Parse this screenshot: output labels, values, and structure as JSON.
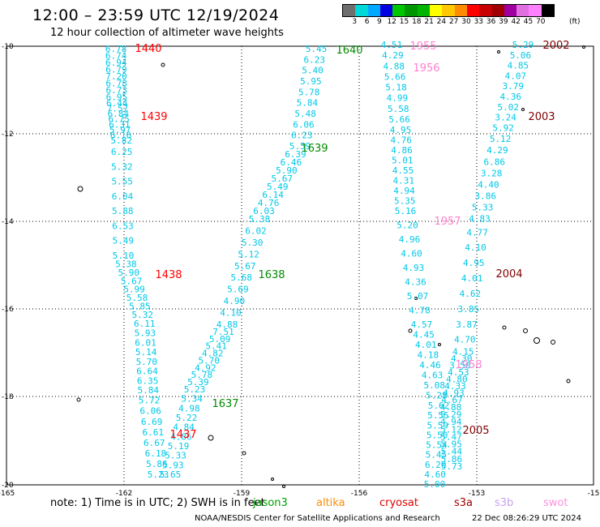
{
  "header": {
    "title": "12:00 – 23:59 UTC 12/19/2024",
    "subtitle": "12 hour collection of altimeter wave heights"
  },
  "colorbar": {
    "colors": [
      "#6e6e6e",
      "#00d8d8",
      "#00a8ff",
      "#0000e0",
      "#00c800",
      "#009600",
      "#00b400",
      "#ffff00",
      "#ffc800",
      "#ff8c00",
      "#ff0000",
      "#c80000",
      "#a00000",
      "#a000a0",
      "#e070e0",
      "#ff80ff",
      "#000000"
    ],
    "ticks": [
      "3",
      "6",
      "9",
      "12",
      "15",
      "18",
      "21",
      "24",
      "27",
      "30",
      "33",
      "36",
      "39",
      "42",
      "45",
      "70"
    ],
    "unit": "(ft)"
  },
  "axes": {
    "y_ticks": [
      "-10",
      "-12",
      "-14",
      "-16",
      "-18",
      "-20"
    ],
    "x_ticks": [
      "-165",
      "-162",
      "-159",
      "-156",
      "-153",
      "-15"
    ]
  },
  "tracks": [
    {
      "color": "#00c8e8",
      "values": [
        "6.78",
        "6.74",
        "6.94",
        "6.79",
        "7.20",
        "6.78",
        "6.73",
        "6.95",
        "6.44",
        "7.57",
        "6.84",
        "6.75",
        "6.31",
        "5.97",
        "6.16",
        "5.82",
        "6.25",
        "5.32",
        "5.55",
        "6.04",
        "5.88",
        "6.53",
        "5.49",
        "5.10",
        "5.38",
        "5.90",
        "5.67",
        "5.99",
        "5.58",
        "5.85",
        "5.32",
        "6.11",
        "5.93",
        "6.01",
        "5.14",
        "5.70",
        "6.64",
        "6.35",
        "5.84",
        "5.72",
        "6.06",
        "6.69",
        "6.61",
        "6.67",
        "6.18",
        "5.86",
        "5.23"
      ]
    },
    {
      "color": "#00c8e8",
      "values": [
        "5.45",
        "6.23",
        "5.40",
        "5.95",
        "5.78",
        "5.84",
        "5.48",
        "6.06",
        "6.23",
        "5.59",
        "6.39",
        "6.46",
        "5.90",
        "5.67",
        "5.49",
        "6.14",
        "4.76",
        "6.03",
        "5.38",
        "6.02",
        "5.30",
        "5.12",
        "5.67",
        "5.68",
        "5.69",
        "4.90",
        "4.10",
        "4.88",
        "7.51",
        "5.09",
        "5.41",
        "4.82",
        "5.70",
        "4.92",
        "5.78",
        "5.39",
        "5.23",
        "5.34",
        "4.98",
        "5.22",
        "4.84",
        "4.86",
        "5.19",
        "5.33",
        "5.93",
        "5.65"
      ]
    },
    {
      "color": "#00c8e8",
      "values": [
        "4.51",
        "4.29",
        "4.88",
        "5.66",
        "5.18",
        "4.99",
        "5.58",
        "5.66",
        "4.95",
        "4.76",
        "4.86",
        "5.01",
        "4.55",
        "4.31",
        "4.94",
        "5.35",
        "5.16",
        "5.20",
        "4.96",
        "4.60",
        "4.93",
        "4.36",
        "5.07",
        "4.78",
        "4.57",
        "4.45",
        "4.01",
        "4.18",
        "4.46",
        "4.63",
        "5.08",
        "5.28",
        "5.62",
        "5.55",
        "5.59",
        "5.50",
        "5.54",
        "5.45",
        "6.20",
        "4.60",
        "5.00"
      ]
    },
    {
      "color": "#00c8e8",
      "values": [
        "5.29",
        "5.06",
        "4.85",
        "4.07",
        "3.79",
        "4.36",
        "5.02",
        "3.24",
        "5.92",
        "5.12",
        "4.29",
        "6.86",
        "3.28",
        "4.40",
        "3.86",
        "5.33",
        "4.83",
        "4.77",
        "4.10",
        "4.95",
        "4.01",
        "4.62",
        "3.85",
        "3.87",
        "4.70",
        "4.15",
        "4.30",
        "3.50",
        "4.53",
        "4.80",
        "4.33",
        "4.93",
        "4.67",
        "4.88",
        "5.29",
        "4.94",
        "5.12",
        "5.47",
        "5.95",
        "5.44",
        "5.86",
        "5.73"
      ]
    }
  ],
  "time_labels": [
    {
      "text": "1440",
      "color": "#ff0000"
    },
    {
      "text": "1439",
      "color": "#ff0000"
    },
    {
      "text": "1438",
      "color": "#ff0000"
    },
    {
      "text": "1437",
      "color": "#ff0000"
    },
    {
      "text": "1640",
      "color": "#008c00"
    },
    {
      "text": "1639",
      "color": "#008c00"
    },
    {
      "text": "1638",
      "color": "#008c00"
    },
    {
      "text": "1637",
      "color": "#008c00"
    },
    {
      "text": "1955",
      "color": "#ff80d0"
    },
    {
      "text": "1956",
      "color": "#ff80d0"
    },
    {
      "text": "1957",
      "color": "#ff80d0"
    },
    {
      "text": "1958",
      "color": "#ff80d0"
    },
    {
      "text": "2002",
      "color": "#800000"
    },
    {
      "text": "2003",
      "color": "#800000"
    },
    {
      "text": "2004",
      "color": "#800000"
    },
    {
      "text": "2005",
      "color": "#800000"
    }
  ],
  "footer": {
    "note": "note: 1) Time is in UTC; 2) SWH is in feet",
    "missions": [
      {
        "name": "jason3",
        "color": "#00a000"
      },
      {
        "name": "altika",
        "color": "#ff8c00"
      },
      {
        "name": "cryosat",
        "color": "#e00000"
      },
      {
        "name": "s3a",
        "color": "#a00000"
      },
      {
        "name": "s3b",
        "color": "#c8a0f0"
      },
      {
        "name": "swot",
        "color": "#ff90e0"
      }
    ],
    "credit": "NOAA/NESDIS Center for Satellite Applications and Research",
    "timestamp": "22 Dec 08:26:29 UTC 2024"
  }
}
